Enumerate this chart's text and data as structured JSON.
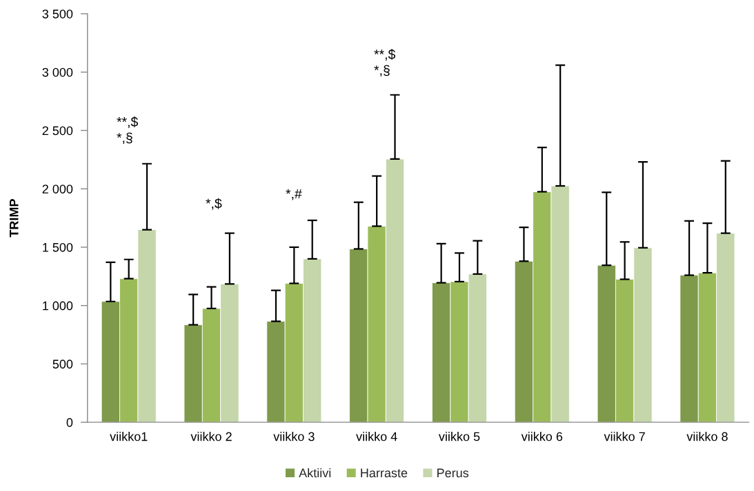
{
  "chart_data": {
    "type": "bar",
    "ylabel": "TRIMP",
    "categories": [
      "viikko1",
      "viikko 2",
      "viikko 3",
      "viikko 4",
      "viikko 5",
      "viikko 6",
      "viikko 7",
      "viikko 8"
    ],
    "series": [
      {
        "name": "Aktiivi",
        "color": "#7e9a4a",
        "values": [
          1035,
          835,
          865,
          1485,
          1195,
          1380,
          1345,
          1260
        ],
        "errors": [
          [
            1035,
            1370
          ],
          [
            835,
            1095
          ],
          [
            865,
            1130
          ],
          [
            1485,
            1885
          ],
          [
            1195,
            1530
          ],
          [
            1380,
            1670
          ],
          [
            1345,
            1970
          ],
          [
            1260,
            1725
          ]
        ]
      },
      {
        "name": "Harraste",
        "color": "#9bbb59",
        "values": [
          1230,
          975,
          1190,
          1680,
          1205,
          1975,
          1225,
          1280
        ],
        "errors": [
          [
            1230,
            1395
          ],
          [
            975,
            1160
          ],
          [
            1190,
            1500
          ],
          [
            1680,
            2110
          ],
          [
            1205,
            1450
          ],
          [
            1975,
            2355
          ],
          [
            1225,
            1545
          ],
          [
            1280,
            1705
          ]
        ]
      },
      {
        "name": "Perus",
        "color": "#c4d6aa",
        "values": [
          1650,
          1185,
          1400,
          2255,
          1270,
          2025,
          1495,
          1620
        ],
        "errors": [
          [
            1650,
            2215
          ],
          [
            1185,
            1620
          ],
          [
            1400,
            1730
          ],
          [
            2255,
            2805
          ],
          [
            1270,
            1555
          ],
          [
            2025,
            3060
          ],
          [
            1495,
            2230
          ],
          [
            1620,
            2240
          ]
        ]
      }
    ],
    "ylim": [
      0,
      3500
    ],
    "yticks": [
      0,
      500,
      {
        "value": 1000,
        "label": "1 000"
      },
      {
        "value": 1500,
        "label": "1 500"
      },
      {
        "value": 2000,
        "label": "2 000"
      },
      {
        "value": 2500,
        "label": "2 500"
      },
      {
        "value": 3000,
        "label": "3 000"
      },
      {
        "value": 3500,
        "label": "3 500"
      }
    ],
    "grid": false,
    "legend": "bottom",
    "annotations": [
      "**,$\n*,§",
      "*,$",
      "*,#",
      "**,$\n*,§"
    ]
  }
}
